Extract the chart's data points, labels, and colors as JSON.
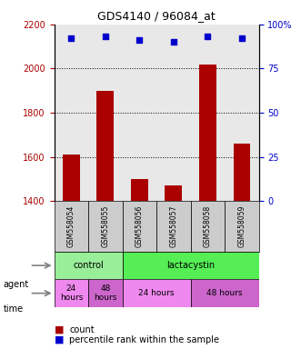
{
  "title": "GDS4140 / 96084_at",
  "samples": [
    "GSM558054",
    "GSM558055",
    "GSM558056",
    "GSM558057",
    "GSM558058",
    "GSM558059"
  ],
  "counts": [
    1610,
    1900,
    1500,
    1470,
    2020,
    1660
  ],
  "percentile_ranks": [
    92,
    93,
    91,
    90,
    93,
    92
  ],
  "ylim_left": [
    1400,
    2200
  ],
  "ylim_right": [
    0,
    100
  ],
  "bar_color": "#aa0000",
  "dot_color": "#0000cc",
  "yticks_left": [
    1400,
    1600,
    1800,
    2000,
    2200
  ],
  "yticks_right": [
    0,
    25,
    50,
    75,
    100
  ],
  "agent_groups": [
    {
      "label": "control",
      "span": [
        0,
        2
      ],
      "color": "#99ee99"
    },
    {
      "label": "lactacystin",
      "span": [
        2,
        6
      ],
      "color": "#55ee55"
    }
  ],
  "time_groups": [
    {
      "label": "24\nhours",
      "span": [
        0,
        1
      ],
      "color": "#ee88ee"
    },
    {
      "label": "48\nhours",
      "span": [
        1,
        2
      ],
      "color": "#cc66cc"
    },
    {
      "label": "24 hours",
      "span": [
        2,
        4
      ],
      "color": "#ee88ee"
    },
    {
      "label": "48 hours",
      "span": [
        4,
        6
      ],
      "color": "#cc66cc"
    }
  ],
  "legend_count_color": "#aa0000",
  "legend_percentile_color": "#0000cc",
  "grid_color": "#000000",
  "left_tick_color": "#aa0000",
  "right_tick_color": "#0000cc",
  "background_color": "#ffffff",
  "plot_bg_color": "#e8e8e8"
}
